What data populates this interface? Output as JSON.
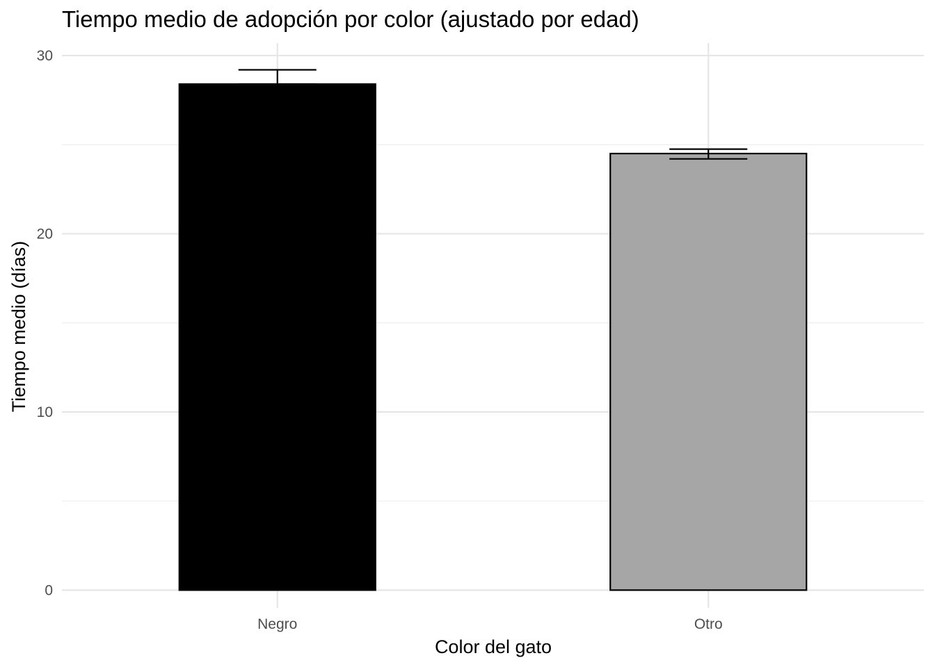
{
  "chart_data": {
    "type": "bar",
    "title": "Tiempo medio de adopción por color (ajustado por edad)",
    "xlabel": "Color del gato",
    "ylabel": "Tiempo medio (días)",
    "categories": [
      "Negro",
      "Otro"
    ],
    "values": [
      28.4,
      24.5
    ],
    "error_bars": [
      {
        "lower": 28.4,
        "upper": 29.2
      },
      {
        "lower": 24.2,
        "upper": 24.75
      }
    ],
    "bar_colors": [
      "#000000",
      "#a6a6a6"
    ],
    "bar_outline": "#000000",
    "ylim": [
      -1.0,
      30.7
    ],
    "y_ticks": [
      0,
      10,
      20,
      30
    ],
    "y_minor_ticks": [
      5,
      15,
      25
    ],
    "grid": true,
    "legend": "none"
  }
}
